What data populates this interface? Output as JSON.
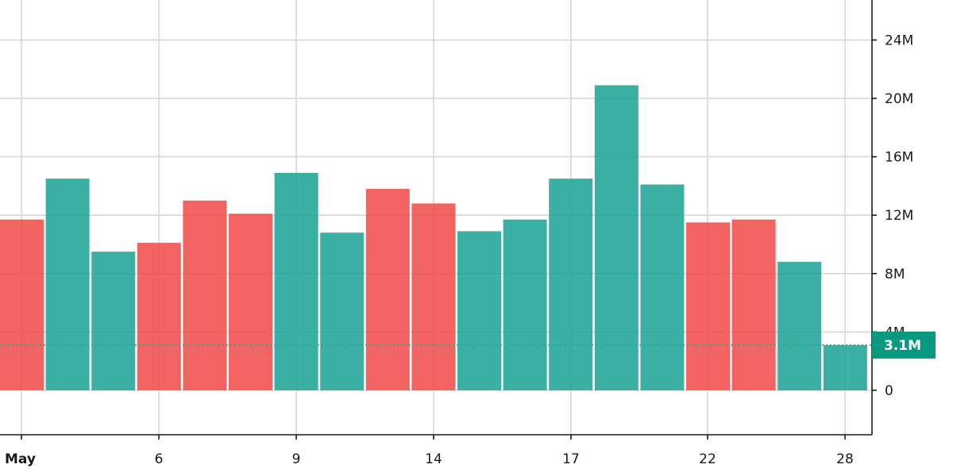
{
  "chart_data": {
    "type": "bar",
    "title": "",
    "xlabel": "",
    "ylabel": "",
    "x_ticks": [
      "May",
      "6",
      "9",
      "14",
      "17",
      "22",
      "28"
    ],
    "y_ticks": [
      "0",
      "4M",
      "8M",
      "12M",
      "16M",
      "20M",
      "24M"
    ],
    "ylim": [
      -3200000,
      27000000
    ],
    "grid": true,
    "up_color": "#26a69a",
    "down_color": "#ef5350",
    "series": [
      {
        "values": [
          11700000,
          14500000,
          9500000,
          10100000,
          13000000,
          12100000,
          14900000,
          10800000,
          13800000,
          12800000,
          10900000,
          11700000,
          14500000,
          20900000,
          14100000,
          11500000,
          11700000,
          8800000,
          3100000
        ],
        "directions": [
          "down",
          "up",
          "up",
          "down",
          "down",
          "down",
          "up",
          "up",
          "down",
          "down",
          "up",
          "up",
          "up",
          "up",
          "up",
          "down",
          "down",
          "up",
          "up"
        ]
      }
    ],
    "last_value_label": "3.1M"
  }
}
